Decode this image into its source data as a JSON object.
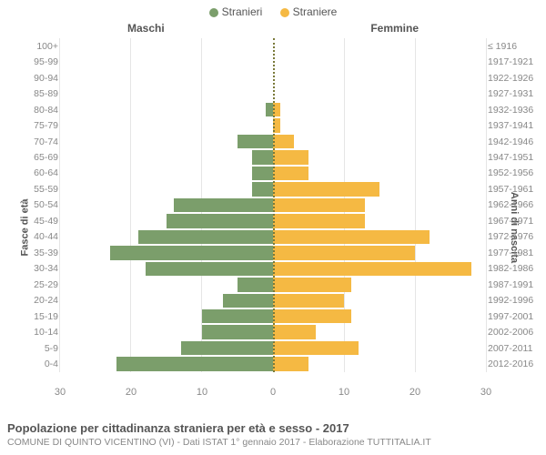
{
  "legend": {
    "male": {
      "label": "Stranieri",
      "color": "#7b9e6b"
    },
    "female": {
      "label": "Straniere",
      "color": "#f5b943"
    }
  },
  "headers": {
    "male": "Maschi",
    "female": "Femmine"
  },
  "axis_left_title": "Fasce di età",
  "axis_right_title": "Anni di nascita",
  "title": "Popolazione per cittadinanza straniera per età e sesso - 2017",
  "subtitle": "COMUNE DI QUINTO VICENTINO (VI) - Dati ISTAT 1° gennaio 2017 - Elaborazione TUTTITALIA.IT",
  "chart": {
    "type": "population-pyramid",
    "xmax": 30,
    "xticks": [
      0,
      10,
      20,
      30
    ],
    "grid_color": "#e5e5e5",
    "center_line_color": "#7a7a3a",
    "background_color": "#ffffff",
    "bar_colors": {
      "male": "#7b9e6b",
      "female": "#f5b943"
    },
    "rows": [
      {
        "age": "100+",
        "birth": "≤ 1916",
        "m": 0,
        "f": 0
      },
      {
        "age": "95-99",
        "birth": "1917-1921",
        "m": 0,
        "f": 0
      },
      {
        "age": "90-94",
        "birth": "1922-1926",
        "m": 0,
        "f": 0
      },
      {
        "age": "85-89",
        "birth": "1927-1931",
        "m": 0,
        "f": 0
      },
      {
        "age": "80-84",
        "birth": "1932-1936",
        "m": 1,
        "f": 1
      },
      {
        "age": "75-79",
        "birth": "1937-1941",
        "m": 0,
        "f": 1
      },
      {
        "age": "70-74",
        "birth": "1942-1946",
        "m": 5,
        "f": 3
      },
      {
        "age": "65-69",
        "birth": "1947-1951",
        "m": 3,
        "f": 5
      },
      {
        "age": "60-64",
        "birth": "1952-1956",
        "m": 3,
        "f": 5
      },
      {
        "age": "55-59",
        "birth": "1957-1961",
        "m": 3,
        "f": 15
      },
      {
        "age": "50-54",
        "birth": "1962-1966",
        "m": 14,
        "f": 13
      },
      {
        "age": "45-49",
        "birth": "1967-1971",
        "m": 15,
        "f": 13
      },
      {
        "age": "40-44",
        "birth": "1972-1976",
        "m": 19,
        "f": 22
      },
      {
        "age": "35-39",
        "birth": "1977-1981",
        "m": 23,
        "f": 20
      },
      {
        "age": "30-34",
        "birth": "1982-1986",
        "m": 18,
        "f": 28
      },
      {
        "age": "25-29",
        "birth": "1987-1991",
        "m": 5,
        "f": 11
      },
      {
        "age": "20-24",
        "birth": "1992-1996",
        "m": 7,
        "f": 10
      },
      {
        "age": "15-19",
        "birth": "1997-2001",
        "m": 10,
        "f": 11
      },
      {
        "age": "10-14",
        "birth": "2002-2006",
        "m": 10,
        "f": 6
      },
      {
        "age": "5-9",
        "birth": "2007-2011",
        "m": 13,
        "f": 12
      },
      {
        "age": "0-4",
        "birth": "2012-2016",
        "m": 22,
        "f": 5
      }
    ]
  }
}
